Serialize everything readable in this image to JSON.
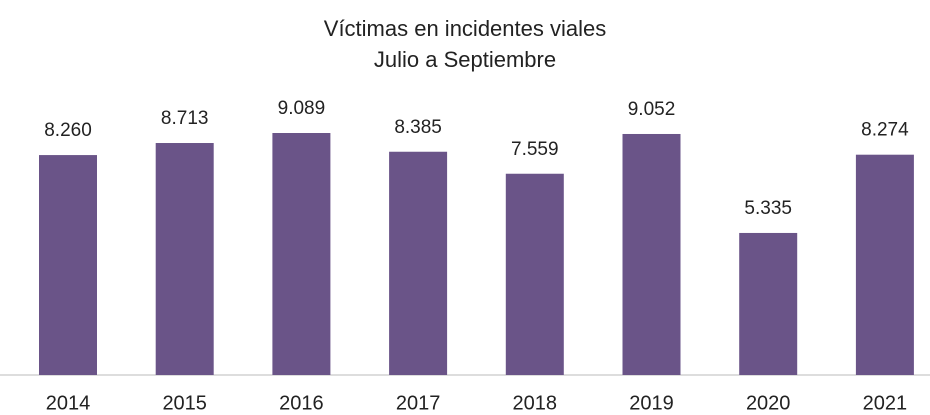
{
  "chart_data": {
    "type": "bar",
    "title": "Víctimas en incidentes viales",
    "subtitle": "Julio a Septiembre",
    "categories": [
      "2014",
      "2015",
      "2016",
      "2017",
      "2018",
      "2019",
      "2020",
      "2021"
    ],
    "values": [
      8260,
      8713,
      9089,
      8385,
      7559,
      9052,
      5335,
      8274
    ],
    "value_labels": [
      "8.260",
      "8.713",
      "9.089",
      "8.385",
      "7.559",
      "9.052",
      "5.335",
      "8.274"
    ],
    "color": "#6a5488"
  }
}
